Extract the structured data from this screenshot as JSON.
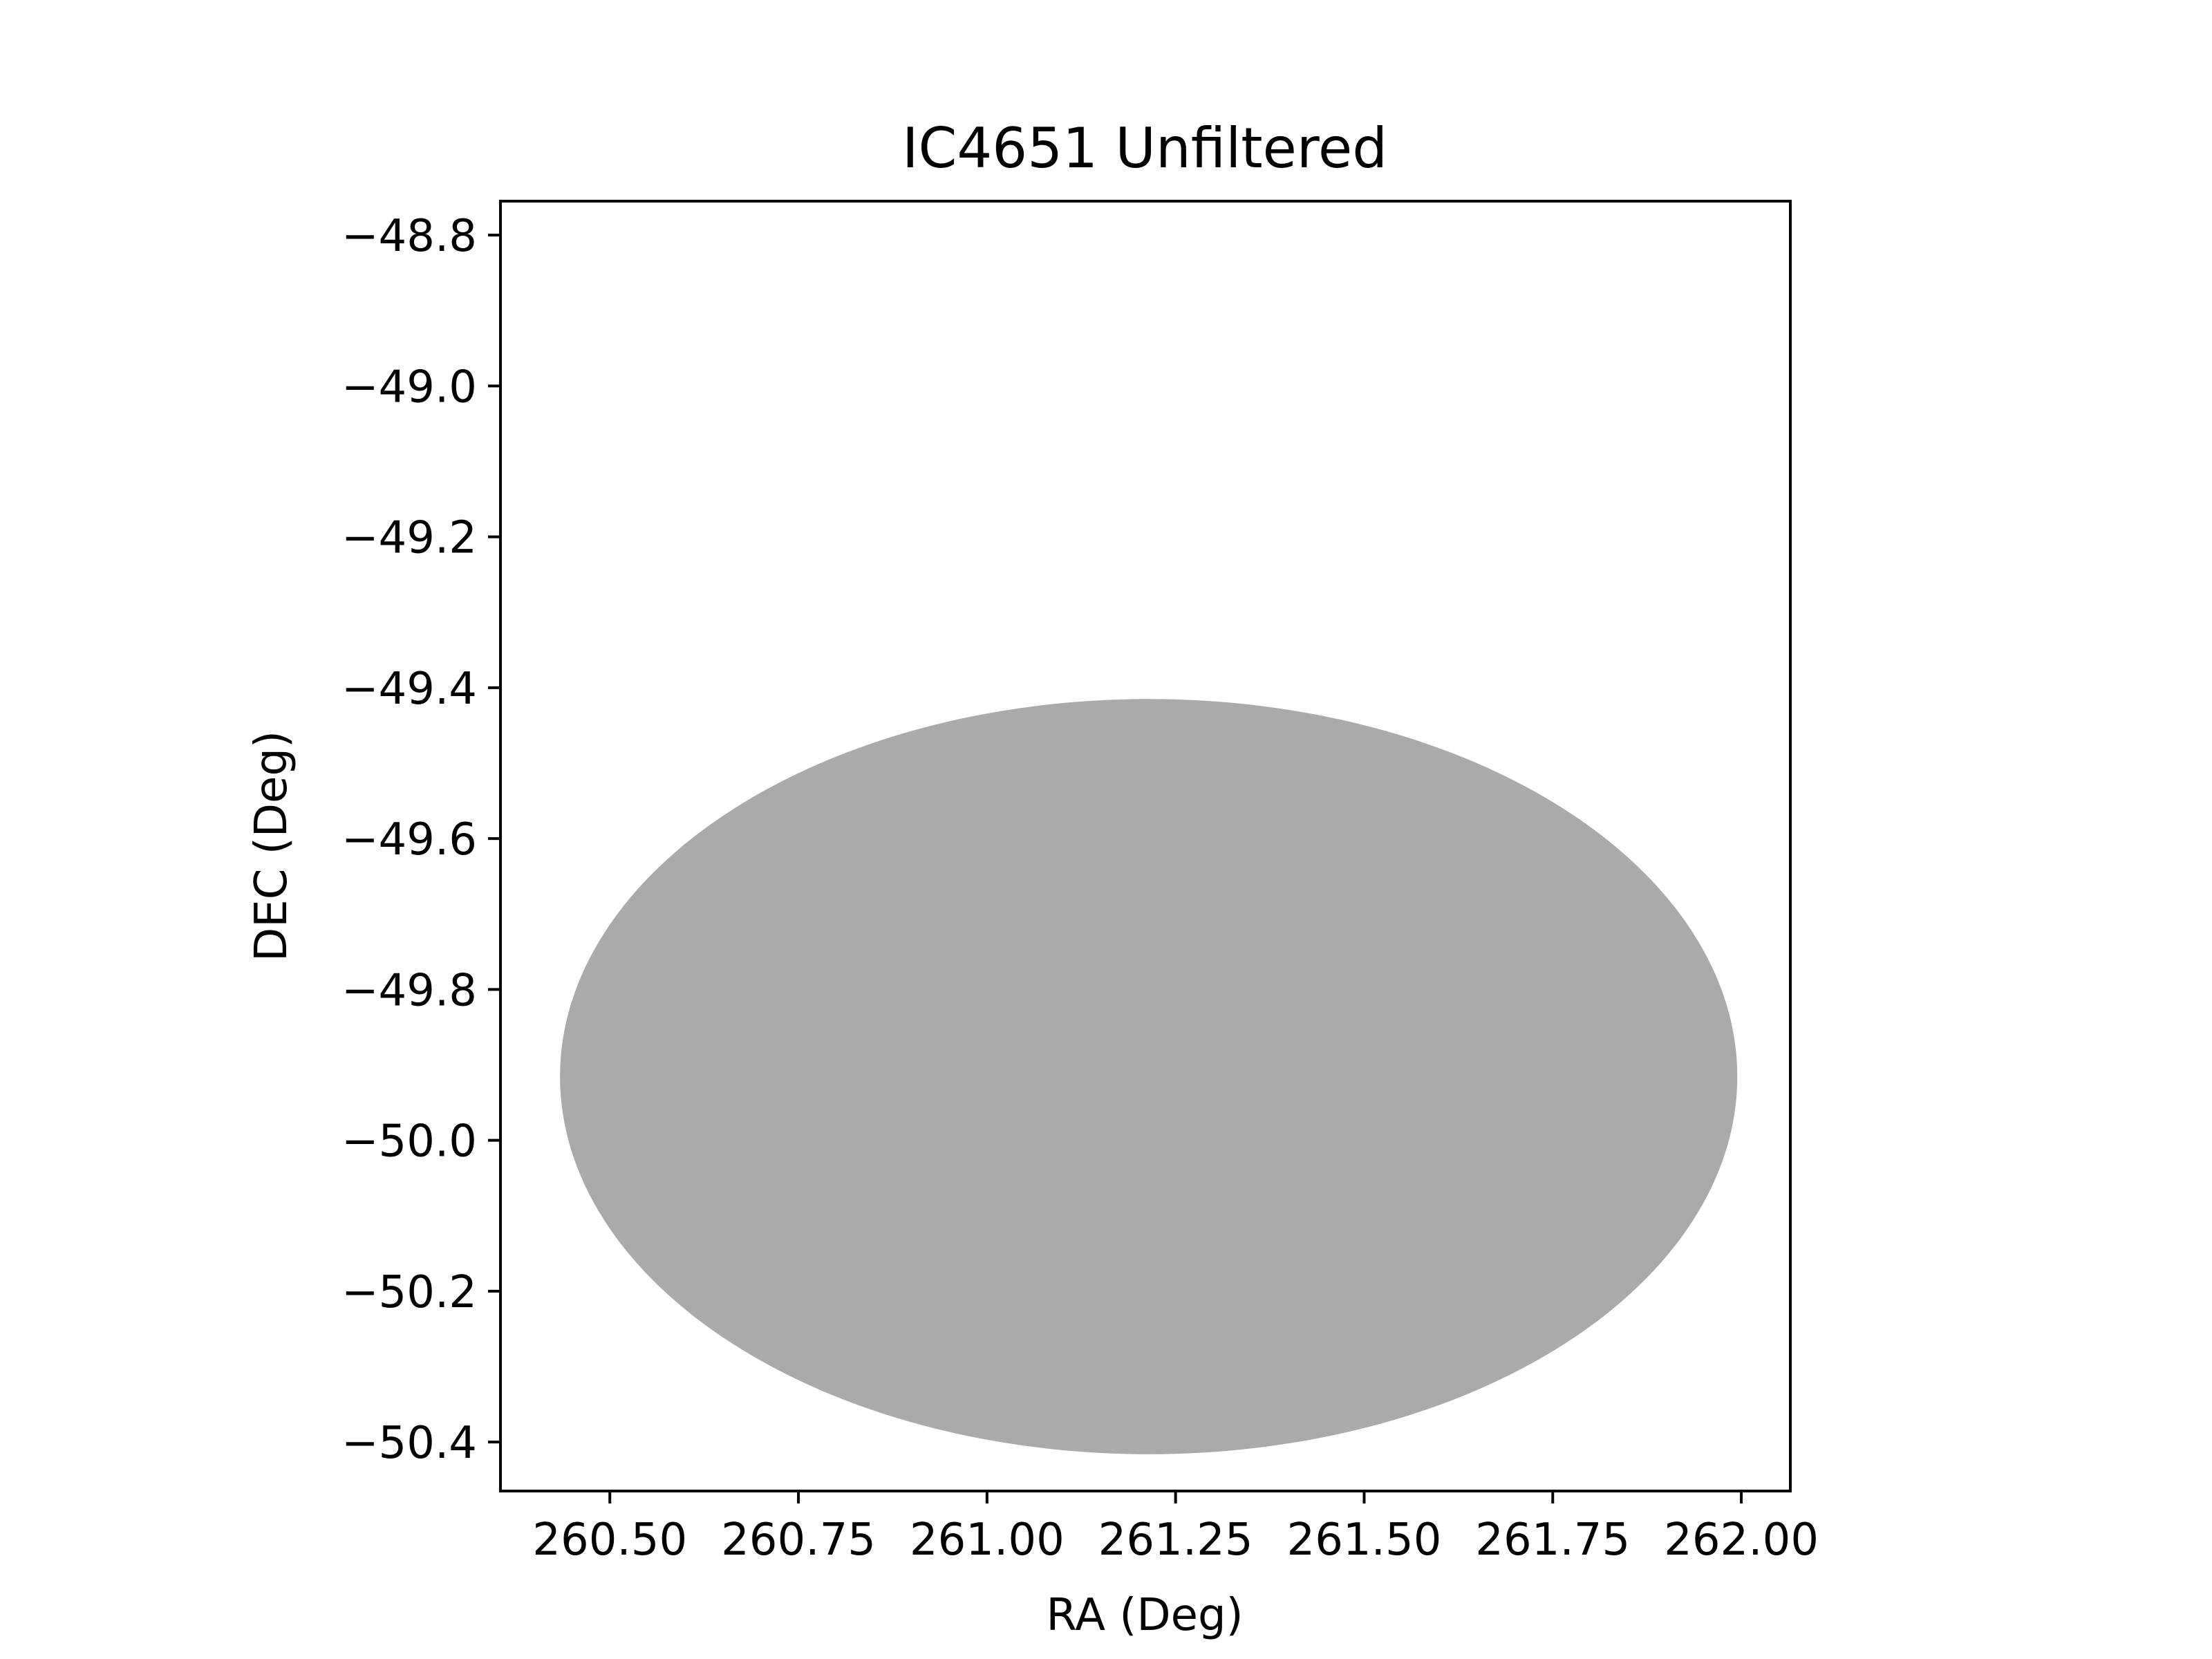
{
  "chart_data": {
    "type": "scatter",
    "title": "IC4651 Unfiltered",
    "xlabel": "RA (Deg)",
    "ylabel": "DEC (Deg)",
    "xlim": [
      260.355,
      262.065
    ],
    "ylim": [
      -50.465,
      -48.755
    ],
    "x_ticks": [
      260.5,
      260.75,
      261.0,
      261.25,
      261.5,
      261.75,
      262.0
    ],
    "x_tick_labels": [
      "260.50",
      "260.75",
      "261.00",
      "261.25",
      "261.50",
      "261.75",
      "262.00"
    ],
    "y_ticks": [
      -48.8,
      -49.0,
      -49.2,
      -49.4,
      -49.6,
      -49.8,
      -50.0,
      -50.2,
      -50.4
    ],
    "y_tick_labels": [
      "−48.8",
      "−49.0",
      "−49.2",
      "−49.4",
      "−49.6",
      "−49.8",
      "−50.0",
      "−50.2",
      "−50.4"
    ],
    "grid": false,
    "marker_color": "#aaaaaa",
    "point_region": {
      "shape": "ellipse",
      "center_ra": 261.2143,
      "center_dec": -49.9156,
      "ra_halfwidth": 0.7804,
      "dec_halfwidth": 0.5006
    }
  }
}
